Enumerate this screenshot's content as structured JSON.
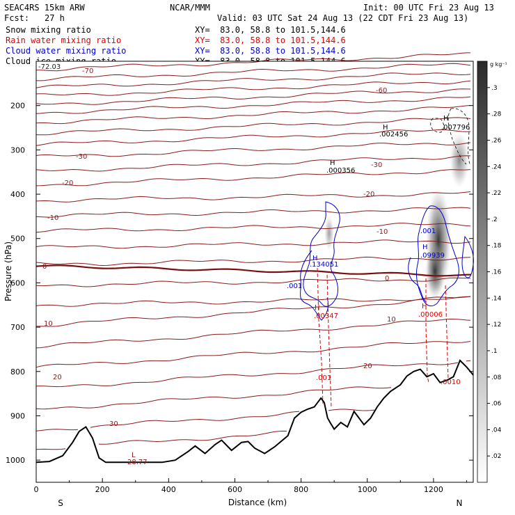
{
  "header": {
    "model": "SEAC4RS 15km ARW",
    "org": "NCAR/MMM",
    "init": "Init: 00 UTC Fri 23 Aug 13",
    "fcst_label": "Fcst:",
    "fcst_value": "27 h",
    "valid": "Valid: 03 UTC Sat 24 Aug 13 (22 CDT Fri 23 Aug 13)"
  },
  "fields": [
    {
      "name": "Snow mixing ratio",
      "color": "#000000",
      "xy": "XY=  83.0, 58.8 to 101.5,144.6"
    },
    {
      "name": "Rain water mixing ratio",
      "color": "#e00000",
      "xy": "XY=  83.0, 58.8 to 101.5,144.6"
    },
    {
      "name": "Cloud water mixing ratio",
      "color": "#0000d0",
      "xy": "XY=  83.0, 58.8 to 101.5,144.6"
    },
    {
      "name": "Cloud ice mixing ratio",
      "color": "#000000",
      "xy": "XY=  83.0, 58.8 to 101.5,144.6"
    }
  ],
  "chart_data": {
    "type": "cross-section",
    "xlabel": "Distance (km)",
    "ylabel": "Pressure (hPa)",
    "xlim": [
      0,
      1320
    ],
    "ylim": [
      1050,
      100
    ],
    "x_ticks": [
      "0",
      "200",
      "400",
      "600",
      "800",
      "1000",
      "1200"
    ],
    "y_ticks": [
      "200",
      "300",
      "400",
      "500",
      "600",
      "700",
      "800",
      "900",
      "1000"
    ],
    "x_end_labels": {
      "left": "S",
      "right": "N"
    },
    "colorbar": {
      "unit": "g kg⁻¹",
      "ticks": [
        ".02",
        ".04",
        ".06",
        ".08",
        ".1",
        ".12",
        ".14",
        ".16",
        ".18",
        ".2",
        ".22",
        ".24",
        ".26",
        ".28",
        ".3"
      ],
      "min": 0,
      "max": 0.32
    },
    "temperature_contour_labels": [
      "-72.03",
      "-70",
      "-60",
      "-30",
      "-30",
      "-20",
      "-20",
      "-10",
      "-10",
      "0",
      "0",
      "10",
      "10",
      "20",
      "20",
      "30",
      "28.77"
    ],
    "hydrometeor_labels": [
      "H",
      ".002456",
      "H",
      ".007796",
      "H",
      ".000356",
      ".001",
      "H",
      ".09939",
      "H",
      ".134051",
      ".001",
      "H",
      ".00347",
      "H",
      ".00006",
      ".001",
      ".0010",
      "L"
    ],
    "terrain": {
      "x": [
        0,
        40,
        80,
        110,
        130,
        150,
        170,
        190,
        210,
        260,
        320,
        380,
        420,
        460,
        480,
        510,
        540,
        560,
        590,
        620,
        640,
        660,
        690,
        720,
        760,
        780,
        800,
        820,
        840,
        860,
        870,
        880,
        890,
        900,
        920,
        940,
        960,
        990,
        1010,
        1030,
        1050,
        1070,
        1100,
        1120,
        1140,
        1160,
        1180,
        1200,
        1220,
        1240,
        1260,
        1280,
        1300,
        1320
      ],
      "p": [
        1005,
        1003,
        990,
        960,
        935,
        925,
        950,
        995,
        1005,
        1005,
        1005,
        1005,
        1000,
        980,
        968,
        985,
        965,
        955,
        978,
        960,
        958,
        973,
        985,
        970,
        945,
        905,
        892,
        885,
        880,
        860,
        870,
        905,
        918,
        930,
        915,
        925,
        890,
        920,
        905,
        880,
        860,
        845,
        830,
        810,
        800,
        795,
        812,
        805,
        825,
        820,
        812,
        775,
        790,
        808
      ]
    }
  }
}
